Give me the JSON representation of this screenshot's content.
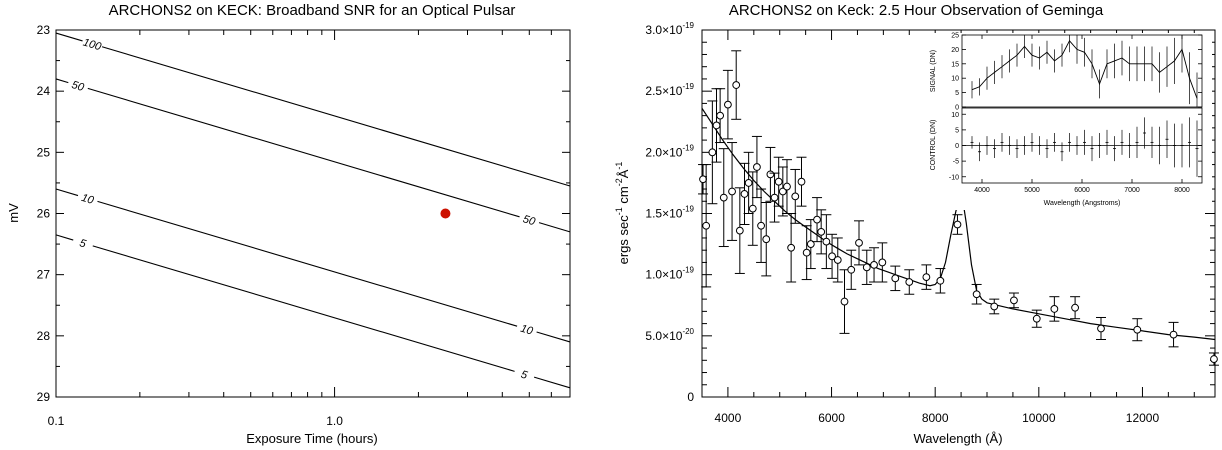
{
  "chart_data": [
    {
      "type": "line",
      "title": "ARCHONS2 on KECK: Broadband SNR for an Optical Pulsar",
      "xlabel": "Exposure Time (hours)",
      "ylabel": "mV",
      "xscale": "log",
      "xlim": [
        0.1,
        7.0
      ],
      "ylim": [
        29,
        23
      ],
      "x_ticks": [
        0.1,
        1.0
      ],
      "x_tick_labels": [
        "0.1",
        "1.0"
      ],
      "y_ticks": [
        23,
        24,
        25,
        26,
        27,
        28,
        29
      ],
      "y_tick_labels": [
        "23",
        "24",
        "25",
        "26",
        "27",
        "28",
        "29"
      ],
      "contours": [
        {
          "label": "100",
          "x": [
            0.1,
            7.0
          ],
          "y": [
            23.05,
            25.55
          ],
          "label_x": 0.135
        },
        {
          "label": "50",
          "x": [
            0.1,
            7.0
          ],
          "y": [
            23.8,
            26.3
          ],
          "label_x": 0.12,
          "label2_x": 5.0
        },
        {
          "label": "10",
          "x": [
            0.1,
            7.0
          ],
          "y": [
            25.6,
            28.1
          ],
          "label_x": 0.13,
          "label2_x": 4.9
        },
        {
          "label": "5",
          "x": [
            0.1,
            7.0
          ],
          "y": [
            26.35,
            28.85
          ],
          "label_x": 0.125,
          "label2_x": 4.8
        }
      ],
      "marker": {
        "x": 2.5,
        "y": 26.0,
        "color": "#cc1100"
      }
    },
    {
      "type": "scatter",
      "title": "ARCHONS2 on Keck: 2.5 Hour Observation of Geminga",
      "xlabel": "Wavelength (Å)",
      "ylabel_parts": [
        "ergs sec",
        "-1",
        " cm",
        "-2",
        "Å",
        "-1"
      ],
      "xlim": [
        3500,
        13400
      ],
      "ylim": [
        0,
        3e-19
      ],
      "x_ticks": [
        4000,
        6000,
        8000,
        10000,
        12000
      ],
      "x_tick_labels": [
        "4000",
        "6000",
        "8000",
        "10000",
        "12000"
      ],
      "y_ticks": [
        0,
        5e-20,
        1e-19,
        1.5e-19,
        2e-19,
        2.5e-19,
        3e-19
      ],
      "y_tick_labels": [
        {
          "m": "0",
          "e": ""
        },
        {
          "m": "5.0×10",
          "e": "-20"
        },
        {
          "m": "1.0×10",
          "e": "-19"
        },
        {
          "m": "1.5×10",
          "e": "-19"
        },
        {
          "m": "2.0×10",
          "e": "-19"
        },
        {
          "m": "2.5×10",
          "e": "-19"
        },
        {
          "m": "3.0×10",
          "e": "-19"
        }
      ],
      "points": [
        {
          "x": 3520,
          "y": 1.78e-19,
          "err": 1.2e-20
        },
        {
          "x": 3580,
          "y": 1.4e-19,
          "err": 5e-20
        },
        {
          "x": 3700,
          "y": 2e-19,
          "err": 4.2e-20
        },
        {
          "x": 3780,
          "y": 2.22e-19,
          "err": 3e-20
        },
        {
          "x": 3850,
          "y": 2.3e-19,
          "err": 2.2e-20
        },
        {
          "x": 3920,
          "y": 1.63e-19,
          "err": 4e-20
        },
        {
          "x": 4000,
          "y": 2.39e-19,
          "err": 2.8e-20
        },
        {
          "x": 4080,
          "y": 1.68e-19,
          "err": 4e-20
        },
        {
          "x": 4160,
          "y": 2.55e-19,
          "err": 2.8e-20
        },
        {
          "x": 4230,
          "y": 1.36e-19,
          "err": 3.5e-20
        },
        {
          "x": 4320,
          "y": 1.66e-19,
          "err": 2.5e-20
        },
        {
          "x": 4400,
          "y": 1.75e-19,
          "err": 2.5e-20
        },
        {
          "x": 4480,
          "y": 1.54e-19,
          "err": 3e-20
        },
        {
          "x": 4560,
          "y": 1.88e-19,
          "err": 2.5e-20
        },
        {
          "x": 4640,
          "y": 1.4e-19,
          "err": 3e-20
        },
        {
          "x": 4740,
          "y": 1.29e-19,
          "err": 3e-20
        },
        {
          "x": 4820,
          "y": 1.82e-19,
          "err": 2.2e-20
        },
        {
          "x": 4900,
          "y": 1.63e-19,
          "err": 2e-20
        },
        {
          "x": 4980,
          "y": 1.76e-19,
          "err": 2e-20
        },
        {
          "x": 5060,
          "y": 1.68e-19,
          "err": 2e-20
        },
        {
          "x": 5140,
          "y": 1.72e-19,
          "err": 2.2e-20
        },
        {
          "x": 5220,
          "y": 1.22e-19,
          "err": 2.8e-20
        },
        {
          "x": 5300,
          "y": 1.64e-19,
          "err": 2.2e-20
        },
        {
          "x": 5420,
          "y": 1.76e-19,
          "err": 2e-20
        },
        {
          "x": 5520,
          "y": 1.18e-19,
          "err": 2.2e-20
        },
        {
          "x": 5600,
          "y": 1.25e-19,
          "err": 2e-20
        },
        {
          "x": 5720,
          "y": 1.45e-19,
          "err": 1.8e-20
        },
        {
          "x": 5800,
          "y": 1.35e-19,
          "err": 1.8e-20
        },
        {
          "x": 5900,
          "y": 1.27e-19,
          "err": 2.2e-20
        },
        {
          "x": 6010,
          "y": 1.15e-19,
          "err": 1.8e-20
        },
        {
          "x": 6120,
          "y": 1.12e-19,
          "err": 1.8e-20
        },
        {
          "x": 6250,
          "y": 7.8e-20,
          "err": 2.6e-20
        },
        {
          "x": 6380,
          "y": 1.04e-19,
          "err": 1.6e-20
        },
        {
          "x": 6530,
          "y": 1.26e-19,
          "err": 1.8e-20
        },
        {
          "x": 6680,
          "y": 1.06e-19,
          "err": 1.4e-20
        },
        {
          "x": 6820,
          "y": 1.08e-19,
          "err": 1.4e-20
        },
        {
          "x": 6980,
          "y": 1.1e-19,
          "err": 1.6e-20
        },
        {
          "x": 7230,
          "y": 9.7e-20,
          "err": 1e-20
        },
        {
          "x": 7500,
          "y": 9.4e-20,
          "err": 1e-20
        },
        {
          "x": 7830,
          "y": 9.8e-20,
          "err": 1e-20
        },
        {
          "x": 8100,
          "y": 9.5e-20,
          "err": 1e-20
        },
        {
          "x": 8430,
          "y": 1.41e-19,
          "err": 8e-21
        },
        {
          "x": 8800,
          "y": 8.4e-20,
          "err": 8e-21
        },
        {
          "x": 9140,
          "y": 7.4e-20,
          "err": 6e-21
        },
        {
          "x": 9520,
          "y": 7.9e-20,
          "err": 6e-21
        },
        {
          "x": 9960,
          "y": 6.4e-20,
          "err": 7e-21
        },
        {
          "x": 10300,
          "y": 7.2e-20,
          "err": 1e-20
        },
        {
          "x": 10700,
          "y": 7.3e-20,
          "err": 9e-21
        },
        {
          "x": 11200,
          "y": 5.6e-20,
          "err": 9e-21
        },
        {
          "x": 11900,
          "y": 5.5e-20,
          "err": 9e-21
        },
        {
          "x": 12600,
          "y": 5.1e-20,
          "err": 1e-20
        },
        {
          "x": 13380,
          "y": 3.1e-20,
          "err": 5e-21
        }
      ],
      "fit_curve": {
        "x": [
          3500,
          3700,
          3900,
          4100,
          4300,
          4500,
          4700,
          4900,
          5100,
          5300,
          5500,
          5700,
          5900,
          6100,
          6300,
          6500,
          6700,
          6900,
          7100,
          7300,
          7500,
          7700,
          7900,
          8000,
          8100,
          8200,
          8300,
          8400,
          8450,
          8500,
          8550,
          8600,
          8700,
          8800,
          8900,
          9000,
          9200,
          9500,
          10000,
          10500,
          11000,
          11500,
          12000,
          12500,
          13000,
          13400
        ],
        "y": [
          2.36e-19,
          2.23e-19,
          2.1e-19,
          1.98e-19,
          1.87e-19,
          1.77e-19,
          1.68e-19,
          1.6e-19,
          1.52e-19,
          1.45e-19,
          1.39e-19,
          1.33e-19,
          1.27e-19,
          1.22e-19,
          1.17e-19,
          1.13e-19,
          1.09e-19,
          1.05e-19,
          1.02e-19,
          9.9e-20,
          9.6e-20,
          9.3e-20,
          9.1e-20,
          9.2e-20,
          9.7e-20,
          1.1e-19,
          1.32e-19,
          1.52e-19,
          1.59e-19,
          1.61e-19,
          1.56e-19,
          1.42e-19,
          1.08e-19,
          8.7e-20,
          8e-20,
          7.7e-20,
          7.5e-20,
          7.2e-20,
          6.8e-20,
          6.4e-20,
          6e-20,
          5.7e-20,
          5.4e-20,
          5.1e-20,
          4.9e-20,
          4.7e-20
        ]
      }
    },
    {
      "type": "line",
      "title": "",
      "panel": "inset-top",
      "ylabel": "SIGNAL (DN)",
      "xlim": [
        3600,
        8400
      ],
      "ylim": [
        0,
        25
      ],
      "y_ticks": [
        0,
        5,
        10,
        15,
        20,
        25
      ],
      "y_tick_labels": [
        "0",
        "5",
        "10",
        "15",
        "20",
        "25"
      ],
      "x": [
        3800,
        3950,
        4100,
        4250,
        4400,
        4550,
        4700,
        4850,
        5000,
        5150,
        5300,
        5450,
        5600,
        5750,
        5900,
        6050,
        6200,
        6350,
        6500,
        6650,
        6800,
        6950,
        7100,
        7250,
        7400,
        7550,
        7700,
        7850,
        8000,
        8150,
        8300
      ],
      "y": [
        6,
        7,
        10,
        12,
        14,
        16,
        18,
        21,
        18,
        17,
        19,
        16,
        18,
        23,
        20,
        19,
        15,
        8,
        15,
        16,
        17,
        15,
        15,
        15,
        15,
        12,
        14,
        16,
        20,
        10,
        3
      ],
      "err": [
        3,
        3,
        4,
        4,
        4,
        4,
        4,
        4,
        4,
        4,
        4,
        4,
        4,
        4,
        5,
        5,
        5,
        5,
        5,
        6,
        6,
        6,
        6,
        6,
        6,
        7,
        7,
        8,
        8,
        9,
        9
      ]
    },
    {
      "type": "scatter",
      "title": "",
      "panel": "inset-bottom",
      "ylabel": "CONTROL (DN)",
      "xlabel": "Wavelength (Angstroms)",
      "xlim": [
        3600,
        8400
      ],
      "ylim": [
        -12,
        12
      ],
      "x_ticks": [
        4000,
        5000,
        6000,
        7000,
        8000
      ],
      "x_tick_labels": [
        "4000",
        "5000",
        "6000",
        "7000",
        "8000"
      ],
      "y_ticks": [
        -10,
        -5,
        0,
        5,
        10
      ],
      "y_tick_labels": [
        "-10",
        "-5",
        "0",
        "5",
        "10"
      ],
      "x": [
        3800,
        3950,
        4100,
        4250,
        4400,
        4550,
        4700,
        4850,
        5000,
        5150,
        5300,
        5450,
        5600,
        5750,
        5900,
        6050,
        6200,
        6350,
        6500,
        6650,
        6800,
        6950,
        7100,
        7250,
        7400,
        7550,
        7700,
        7850,
        8000,
        8150,
        8300
      ],
      "y": [
        1,
        -2,
        0,
        -1,
        1,
        0,
        -1,
        0,
        1,
        0,
        -1,
        1,
        -2,
        1,
        0,
        1,
        -1,
        0,
        1,
        -1,
        1,
        0,
        1,
        4,
        1,
        0,
        2,
        0,
        0,
        1,
        -1
      ],
      "err": [
        2,
        3,
        3,
        3,
        3,
        3,
        3,
        3,
        3,
        3,
        3,
        3,
        3,
        3,
        3,
        4,
        4,
        4,
        4,
        4,
        4,
        4,
        5,
        5,
        5,
        6,
        6,
        7,
        7,
        8,
        9
      ]
    }
  ]
}
